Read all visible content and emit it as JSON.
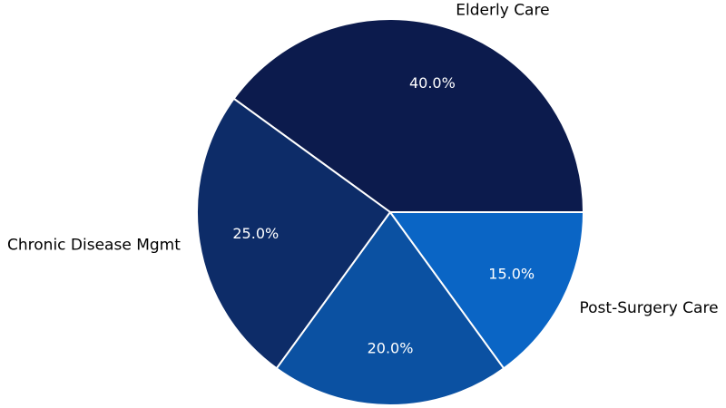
{
  "figure": {
    "background_color": "#ffffff"
  },
  "chart_data": {
    "type": "pie",
    "title": "",
    "start_angle_deg": 0,
    "direction": "counterclockwise",
    "wedge_edge_color": "#ffffff",
    "pct_text_color": "#ffffff",
    "label_text_color": "#000000",
    "slices": [
      {
        "label": "Elderly Care",
        "value": 40.0,
        "pct_label": "40.0%",
        "color": "#0c1b4d"
      },
      {
        "label": "Chronic Disease Mgmt",
        "value": 25.0,
        "pct_label": "25.0%",
        "color": "#0d2c68"
      },
      {
        "label": "",
        "value": 20.0,
        "pct_label": "20.0%",
        "color": "#0b51a2"
      },
      {
        "label": "Post-Surgery Care",
        "value": 15.0,
        "pct_label": "15.0%",
        "color": "#0a65c5"
      }
    ]
  }
}
